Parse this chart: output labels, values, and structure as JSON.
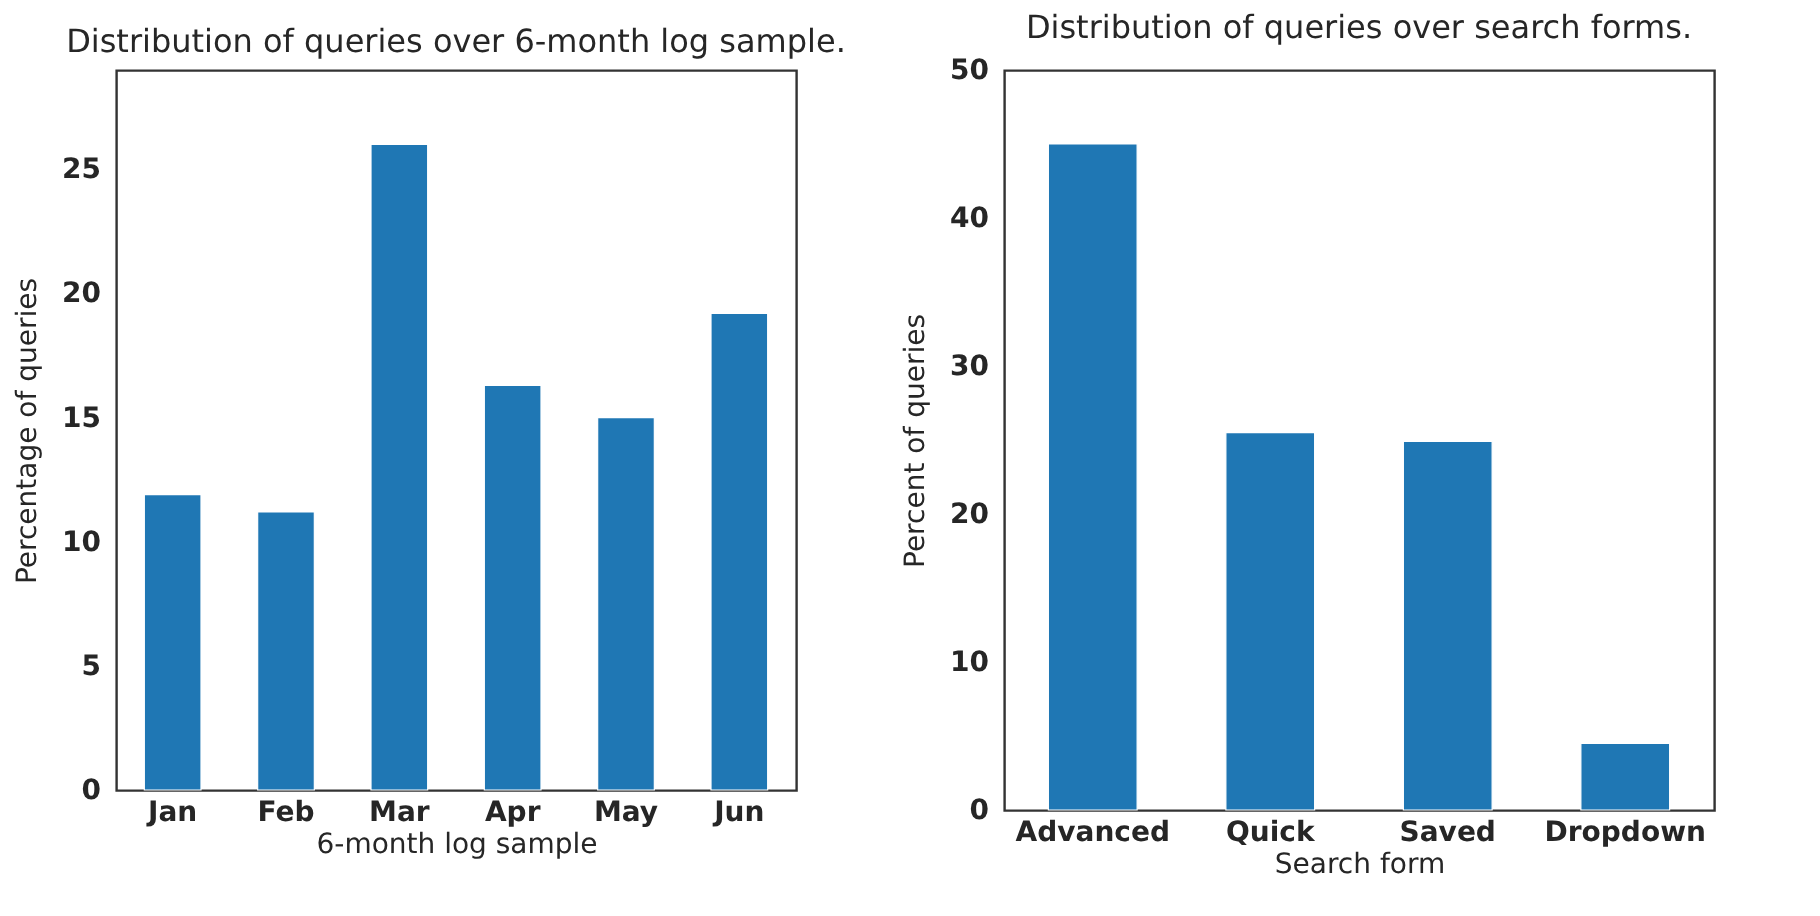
{
  "chart_data": [
    {
      "type": "bar",
      "title": "Distribution of queries over 6-month log sample.",
      "xlabel": "6-month log sample",
      "ylabel": "Percentage of queries",
      "categories": [
        "Jan",
        "Feb",
        "Mar",
        "Apr",
        "May",
        "Jun"
      ],
      "values": [
        11.9,
        11.2,
        26.0,
        16.3,
        15.0,
        19.2
      ],
      "color": "#1f77b4",
      "ylim": [
        0,
        29
      ],
      "yticks": [
        0,
        5,
        10,
        15,
        20,
        25
      ]
    },
    {
      "type": "bar",
      "title": "Distribution of queries over search forms.",
      "xlabel": "Search form",
      "ylabel": "Percent of queries",
      "categories": [
        "Advanced",
        "Quick",
        "Saved",
        "Dropdown"
      ],
      "values": [
        45.0,
        25.5,
        24.9,
        4.5
      ],
      "color": "#1f77b4",
      "ylim": [
        0,
        50
      ],
      "yticks": [
        0,
        10,
        20,
        30,
        40,
        50
      ]
    }
  ]
}
